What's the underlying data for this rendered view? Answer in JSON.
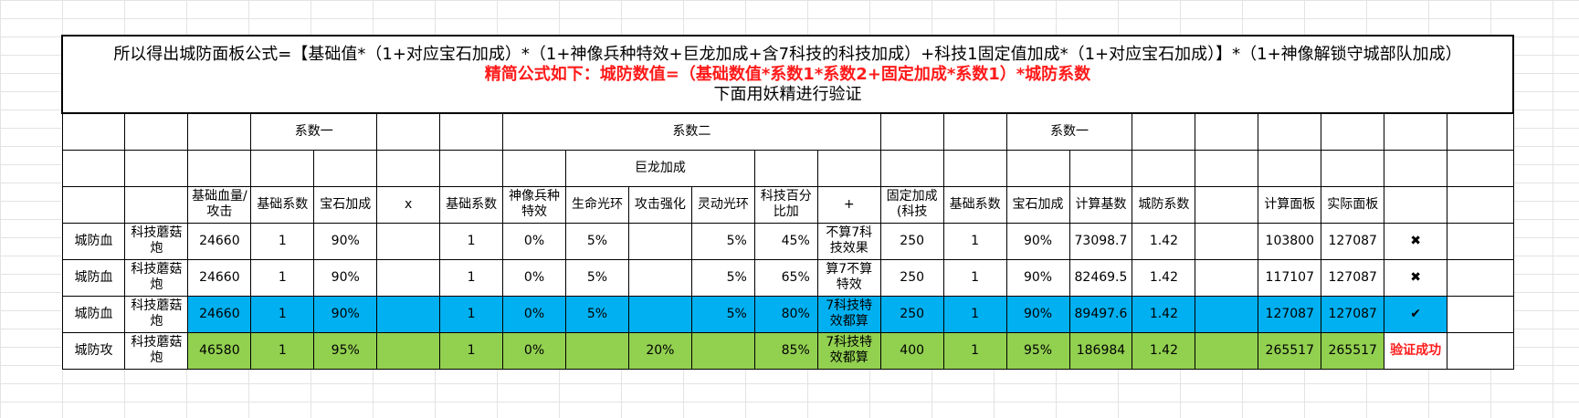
{
  "title": {
    "line1": "所以得出城防面板公式=【基础值*（1+对应宝石加成）*（1+神像兵种特效+巨龙加成+含7科技的科技加成）+科技1固定值加成*（1+对应宝石加成）】*（1+神像解锁守城部队加成）",
    "line2": "精简公式如下：城防数值=（基础数值*系数1*系数2+固定加成*系数1）*城防系数",
    "line3": "下面用妖精进行验证"
  },
  "groups": {
    "coef1_a": "系数一",
    "coef2": "系数二",
    "coef1_b": "系数一",
    "dragon": "巨龙加成"
  },
  "headers": {
    "base": "基础血量/攻击",
    "base_coef": "基础系数",
    "gem": "宝石加成",
    "times": "x",
    "base_coef2": "基础系数",
    "statue": "神像兵种特效",
    "life_halo": "生命光环",
    "atk_boost": "攻击强化",
    "agile_halo": "灵动光环",
    "tech_pct": "科技百分比加",
    "plus": "+",
    "fixed": "固定加成(科技",
    "base_coef3": "基础系数",
    "gem2": "宝石加成",
    "calc_base": "计算基数",
    "city_coef": "城防系数",
    "calc_panel": "计算面板",
    "actual_panel": "实际面板"
  },
  "rows": [
    {
      "type": "城防血",
      "unit": "科技蘑菇炮",
      "base": "24660",
      "base_coef": "1",
      "gem": "90%",
      "base_coef2": "1",
      "statue": "0%",
      "life": "5%",
      "atk": "",
      "agile": "5%",
      "tech": "45%",
      "note": "不算7科技效果",
      "fixed": "250",
      "base_coef3": "1",
      "gem2": "90%",
      "calc_base": "73098.7",
      "city_coef": "1.42",
      "calc_panel": "103800",
      "actual_panel": "127087",
      "result": "✖"
    },
    {
      "type": "城防血",
      "unit": "科技蘑菇炮",
      "base": "24660",
      "base_coef": "1",
      "gem": "90%",
      "base_coef2": "1",
      "statue": "0%",
      "life": "5%",
      "atk": "",
      "agile": "5%",
      "tech": "65%",
      "note": "算7不算特效",
      "fixed": "250",
      "base_coef3": "1",
      "gem2": "90%",
      "calc_base": "82469.5",
      "city_coef": "1.42",
      "calc_panel": "117107",
      "actual_panel": "127087",
      "result": "✖"
    },
    {
      "type": "城防血",
      "unit": "科技蘑菇炮",
      "base": "24660",
      "base_coef": "1",
      "gem": "90%",
      "base_coef2": "1",
      "statue": "0%",
      "life": "5%",
      "atk": "",
      "agile": "5%",
      "tech": "80%",
      "note": "7科技特效都算",
      "fixed": "250",
      "base_coef3": "1",
      "gem2": "90%",
      "calc_base": "89497.6",
      "city_coef": "1.42",
      "calc_panel": "127087",
      "actual_panel": "127087",
      "result": "✔"
    },
    {
      "type": "城防攻",
      "unit": "科技蘑菇炮",
      "base": "46580",
      "base_coef": "1",
      "gem": "95%",
      "base_coef2": "1",
      "statue": "0%",
      "life": "",
      "atk": "20%",
      "agile": "",
      "tech": "85%",
      "note": "7科技特效都算",
      "fixed": "400",
      "base_coef3": "1",
      "gem2": "95%",
      "calc_base": "186984",
      "city_coef": "1.42",
      "calc_panel": "265517",
      "actual_panel": "265517",
      "result": "验证成功"
    }
  ],
  "colors": {
    "highlight_blue": "#00b0f0",
    "highlight_green": "#92d050",
    "accent_red": "#ff1a1a"
  }
}
